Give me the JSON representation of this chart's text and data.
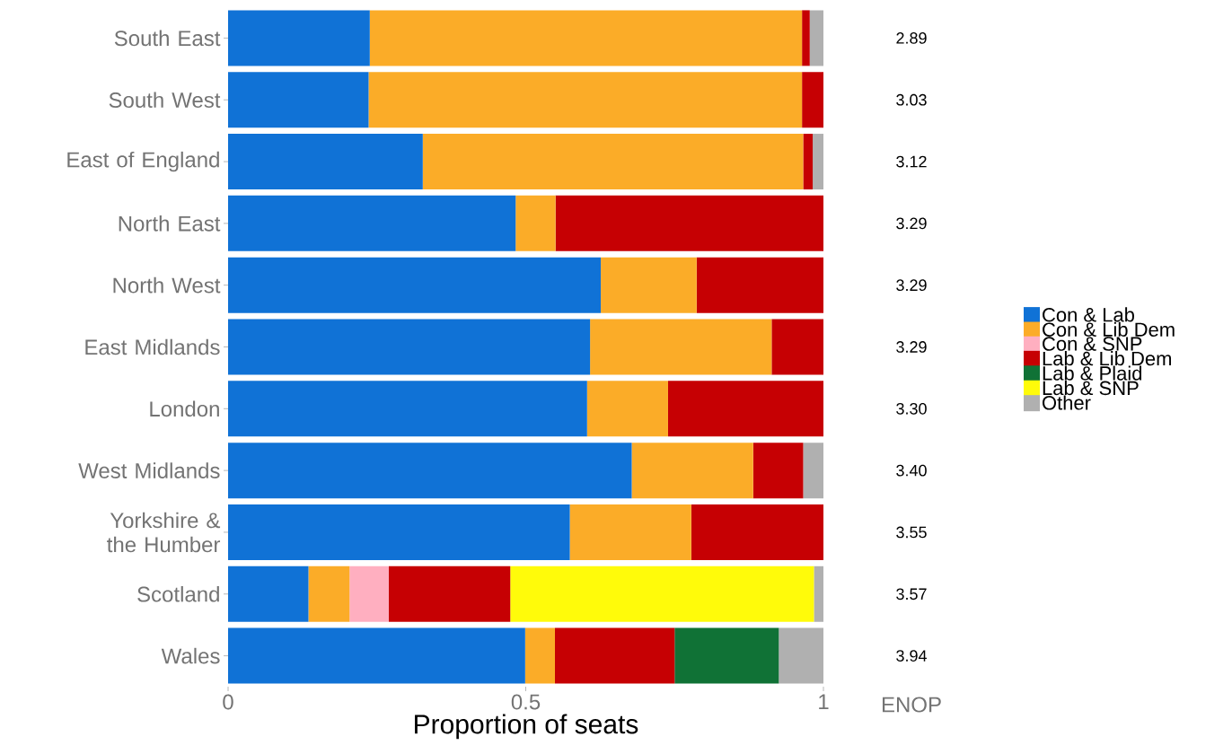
{
  "chart_data": {
    "type": "bar",
    "orientation": "horizontal",
    "stacked": true,
    "xlabel": "Proportion of seats",
    "categories": [
      "South East",
      "South West",
      "East of England",
      "North East",
      "North West",
      "East Midlands",
      "London",
      "West Midlands",
      "Yorkshire & the Humber",
      "Scotland",
      "Wales"
    ],
    "series": [
      {
        "name": "Con & Lab",
        "color": "#1072d6",
        "values": [
          0.238,
          0.236,
          0.327,
          0.483,
          0.626,
          0.608,
          0.603,
          0.678,
          0.574,
          0.135,
          0.499
        ]
      },
      {
        "name": "Con & Lib Dem",
        "color": "#fbac28",
        "values": [
          0.726,
          0.728,
          0.639,
          0.067,
          0.161,
          0.305,
          0.136,
          0.204,
          0.204,
          0.069,
          0.05
        ]
      },
      {
        "name": "Con & SNP",
        "color": "#ffafc0",
        "values": [
          0,
          0,
          0,
          0,
          0,
          0,
          0,
          0,
          0,
          0.066,
          0
        ]
      },
      {
        "name": "Lab & Lib Dem",
        "color": "#c60003",
        "values": [
          0.013,
          0.036,
          0.016,
          0.45,
          0.213,
          0.087,
          0.261,
          0.084,
          0.222,
          0.204,
          0.201
        ]
      },
      {
        "name": "Lab & Plaid",
        "color": "#107236",
        "values": [
          0,
          0,
          0,
          0,
          0,
          0,
          0,
          0,
          0,
          0,
          0.175
        ]
      },
      {
        "name": "Lab & SNP",
        "color": "#fffb0a",
        "values": [
          0,
          0,
          0,
          0,
          0,
          0,
          0,
          0,
          0,
          0.51,
          0
        ]
      },
      {
        "name": "Other",
        "color": "#b0b0b0",
        "values": [
          0.023,
          0,
          0.018,
          0,
          0,
          0,
          0,
          0.034,
          0,
          0.016,
          0.075
        ]
      }
    ],
    "xlim": [
      0,
      1
    ],
    "xticks": [
      0,
      0.5,
      1
    ],
    "legend": "right",
    "annotations": [
      "2.89",
      "3.03",
      "3.12",
      "3.29",
      "3.29",
      "3.29",
      "3.30",
      "3.40",
      "3.55",
      "3.57",
      "3.94",
      "ENOP"
    ]
  }
}
